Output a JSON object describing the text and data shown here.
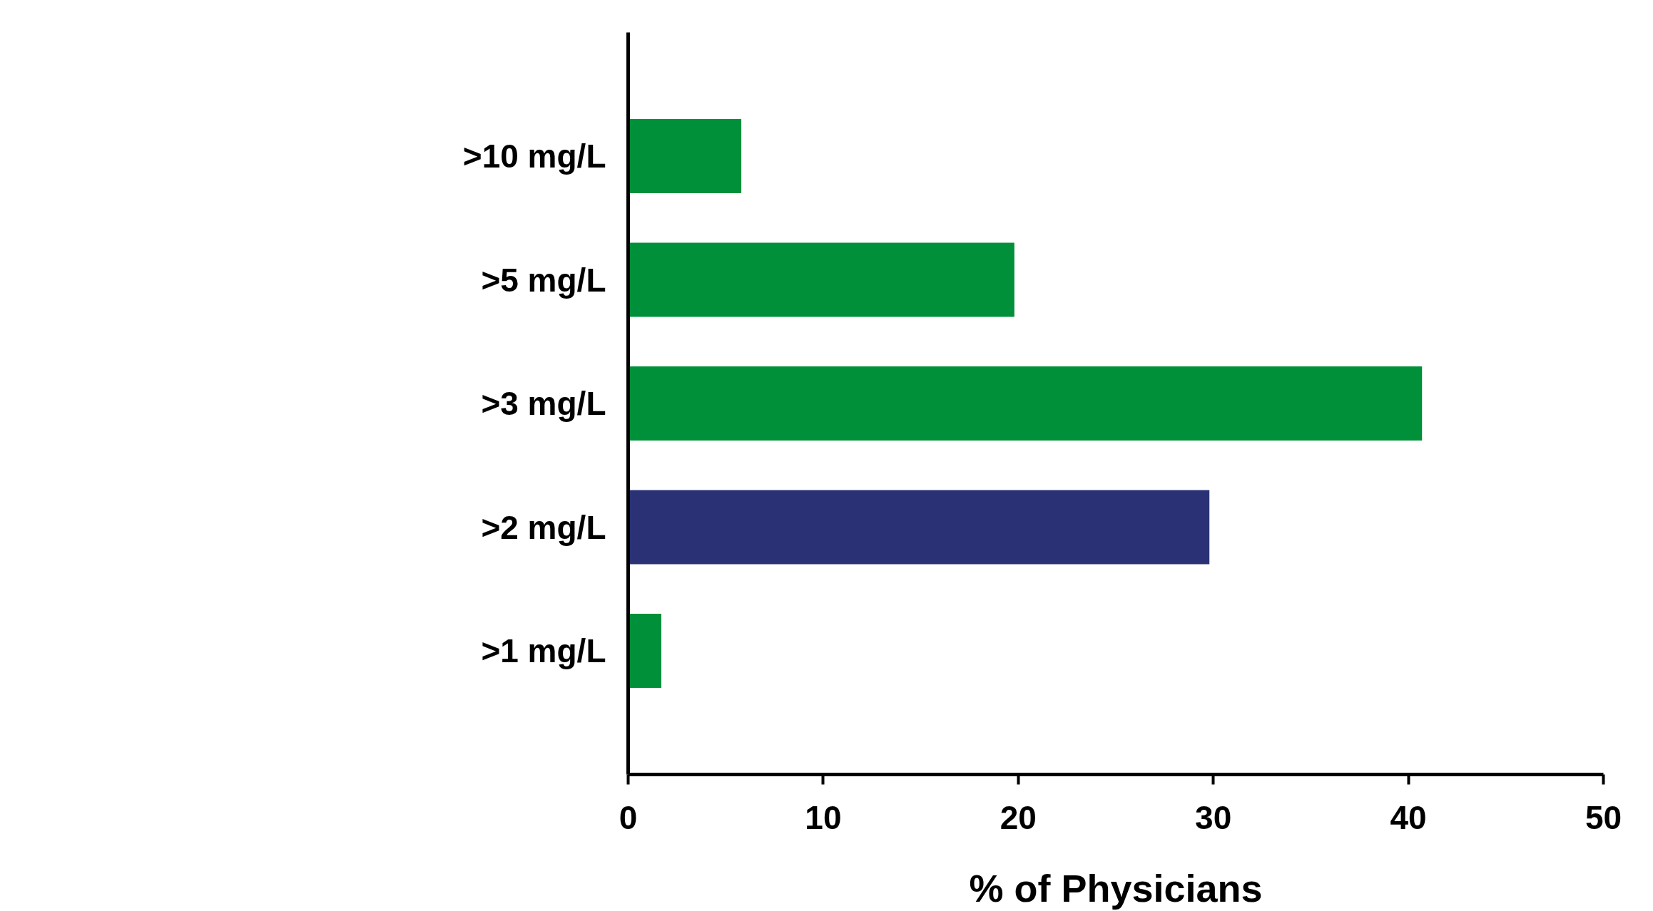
{
  "chart_data": {
    "type": "bar",
    "orientation": "horizontal",
    "xlabel": "% of Physicians",
    "categories": [
      ">10 mg/L",
      ">5 mg/L",
      ">3 mg/L",
      ">2 mg/L",
      ">1 mg/L"
    ],
    "values": [
      5.8,
      19.8,
      40.7,
      29.8,
      1.7
    ],
    "colors": [
      "#009039",
      "#009039",
      "#009039",
      "#2a3275",
      "#009039"
    ],
    "xlim": [
      0,
      50
    ],
    "xticks": [
      0,
      10,
      20,
      30,
      40,
      50
    ],
    "grid": false
  }
}
